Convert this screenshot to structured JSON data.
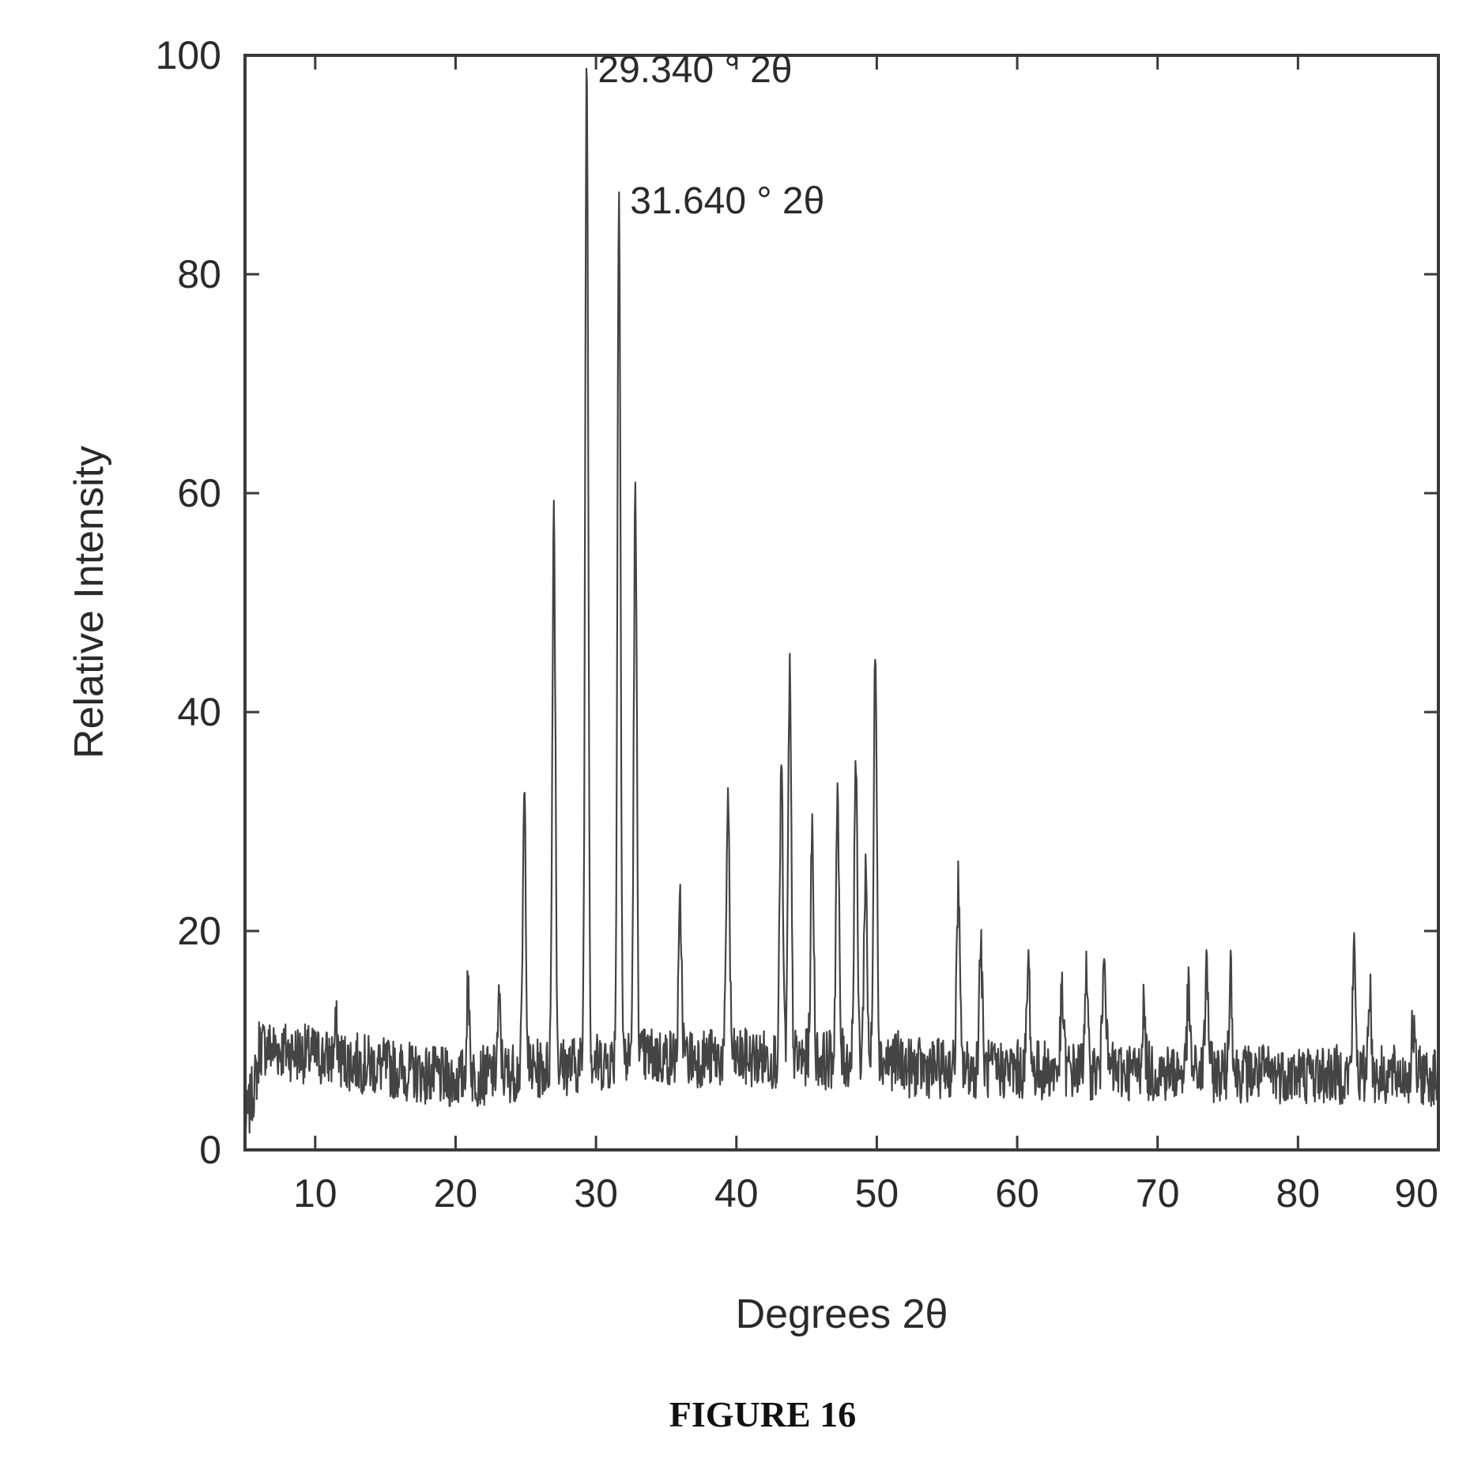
{
  "figure_caption": "FIGURE 16",
  "chart_data": {
    "type": "line",
    "xlabel": "Degrees 2θ",
    "ylabel": "Relative Intensity",
    "xlim": [
      5,
      90
    ],
    "ylim": [
      0,
      100
    ],
    "x_ticks": [
      10,
      20,
      30,
      40,
      50,
      60,
      70,
      80,
      90
    ],
    "y_ticks": [
      0,
      20,
      40,
      60,
      80,
      100
    ],
    "grid": false,
    "line_color": "#444444",
    "annotations": [
      {
        "text": "29.340 ° 2θ",
        "x": 29.34,
        "y": 100
      },
      {
        "text": "31.640 ° 2θ",
        "x": 31.64,
        "y": 88
      }
    ],
    "peaks": [
      {
        "x": 11.5,
        "y": 11
      },
      {
        "x": 20.9,
        "y": 15
      },
      {
        "x": 23.1,
        "y": 13
      },
      {
        "x": 24.9,
        "y": 32
      },
      {
        "x": 27.0,
        "y": 59
      },
      {
        "x": 29.34,
        "y": 100
      },
      {
        "x": 31.64,
        "y": 88
      },
      {
        "x": 32.8,
        "y": 59
      },
      {
        "x": 36.0,
        "y": 22
      },
      {
        "x": 39.4,
        "y": 33
      },
      {
        "x": 43.2,
        "y": 35
      },
      {
        "x": 43.8,
        "y": 43
      },
      {
        "x": 45.4,
        "y": 29
      },
      {
        "x": 47.2,
        "y": 32
      },
      {
        "x": 48.5,
        "y": 36
      },
      {
        "x": 49.2,
        "y": 26
      },
      {
        "x": 49.9,
        "y": 47
      },
      {
        "x": 55.8,
        "y": 24
      },
      {
        "x": 57.4,
        "y": 19
      },
      {
        "x": 60.8,
        "y": 17
      },
      {
        "x": 63.2,
        "y": 14
      },
      {
        "x": 64.9,
        "y": 16
      },
      {
        "x": 66.2,
        "y": 20
      },
      {
        "x": 69.0,
        "y": 13
      },
      {
        "x": 72.2,
        "y": 14
      },
      {
        "x": 73.5,
        "y": 17
      },
      {
        "x": 75.2,
        "y": 17
      },
      {
        "x": 84.0,
        "y": 18
      },
      {
        "x": 85.1,
        "y": 15
      },
      {
        "x": 88.2,
        "y": 11
      }
    ]
  }
}
